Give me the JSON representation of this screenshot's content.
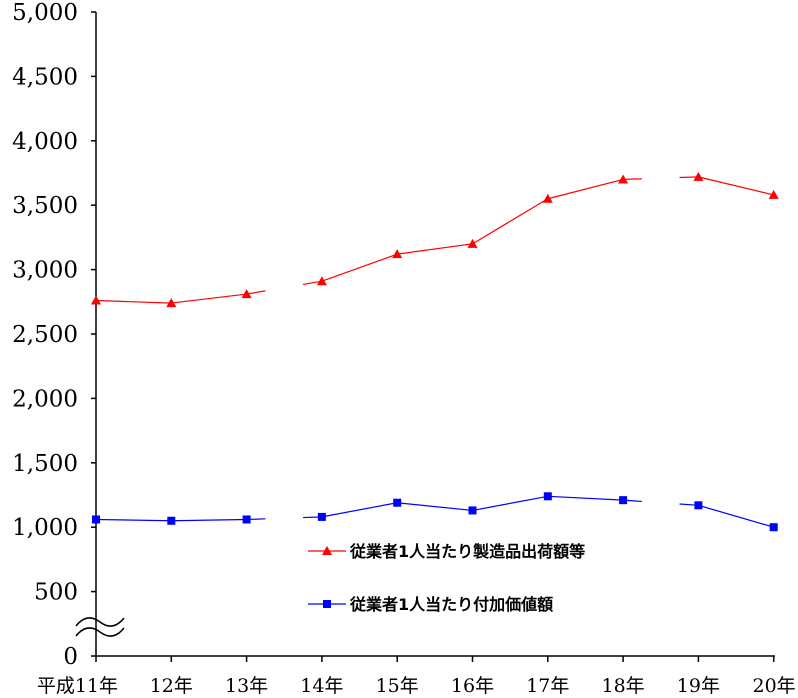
{
  "chart_data": {
    "type": "line",
    "title": "",
    "xlabel": "",
    "ylabel": "",
    "ylim": [
      0,
      5000
    ],
    "axis_break": true,
    "grid": false,
    "legend_position": "center-right",
    "y_ticks": [
      "0",
      "500",
      "1,000",
      "1,500",
      "2,000",
      "2,500",
      "3,000",
      "3,500",
      "4,000",
      "4,500",
      "5,000"
    ],
    "y_tick_values": [
      0,
      500,
      1000,
      1500,
      2000,
      2500,
      3000,
      3500,
      4000,
      4500,
      5000
    ],
    "categories": [
      "平成11年",
      "12年",
      "13年",
      "14年",
      "15年",
      "16年",
      "17年",
      "18年",
      "19年",
      "20年"
    ],
    "series": [
      {
        "name": "従業者1人当たり製造品出荷額等",
        "color": "#ff0000",
        "marker": "triangle",
        "values": [
          2760,
          2740,
          2810,
          2910,
          3120,
          3200,
          3550,
          3700,
          3720,
          3580
        ],
        "gaps_after_index": [
          2,
          7
        ]
      },
      {
        "name": "従業者1人当たり付加価値額",
        "color": "#0000ff",
        "marker": "square",
        "values": [
          1060,
          1050,
          1060,
          1080,
          1190,
          1130,
          1240,
          1210,
          1170,
          1000
        ],
        "gaps_after_index": [
          2,
          7
        ]
      }
    ]
  }
}
